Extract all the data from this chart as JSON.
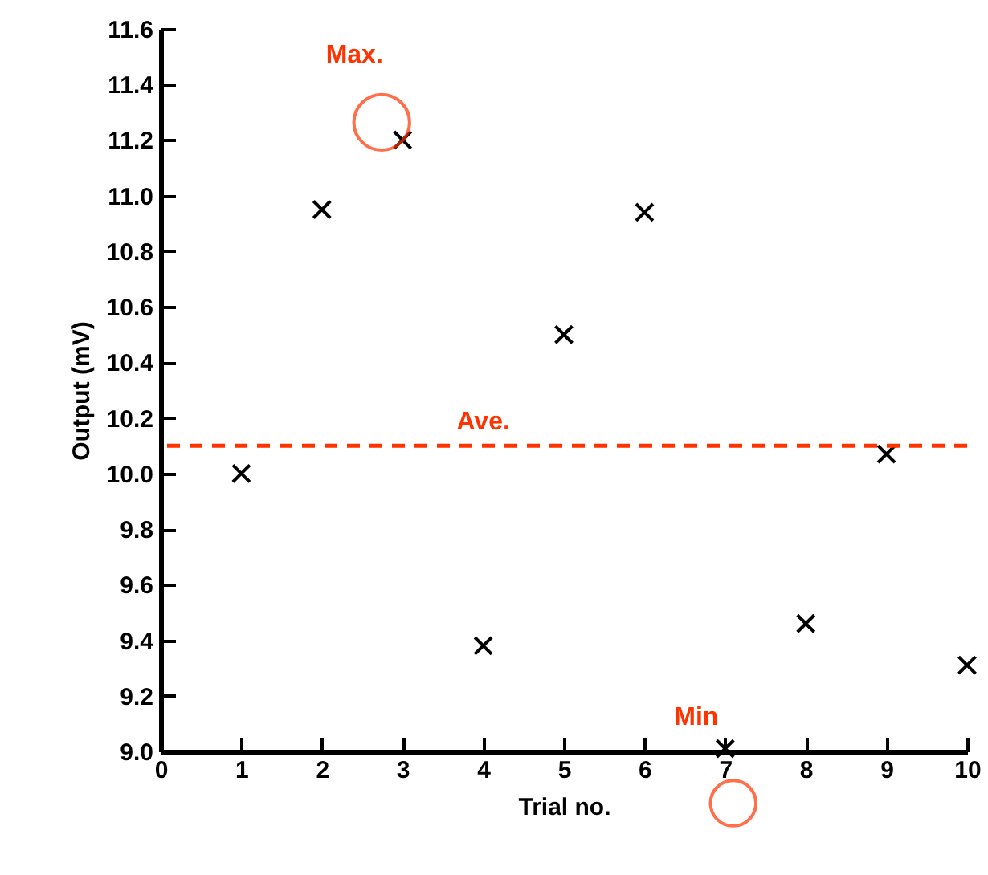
{
  "chart_data": {
    "type": "scatter",
    "xlabel": "Trial no.",
    "ylabel": "Output (mV)",
    "x": [
      1,
      2,
      3,
      4,
      5,
      6,
      7,
      8,
      9,
      10
    ],
    "series": [
      {
        "color": "#000000",
        "values": [
          10.0,
          10.95,
          11.2,
          9.38,
          10.5,
          10.94,
          9.01,
          9.46,
          10.07,
          9.31
        ]
      }
    ],
    "marker": "cross",
    "grid": false,
    "xlim": [
      0,
      10
    ],
    "xticks": [
      0,
      1,
      2,
      3,
      4,
      5,
      6,
      7,
      8,
      9,
      10
    ],
    "ylim": [
      9,
      11.6
    ],
    "yticks": [
      {
        "value": 9,
        "label": "9.0"
      },
      {
        "value": 9.2,
        "label": "9.2"
      },
      {
        "value": 9.4,
        "label": "9.4"
      },
      {
        "value": 9.6,
        "label": "9.6"
      },
      {
        "value": 9.8,
        "label": "9.8"
      },
      {
        "value": 10,
        "label": "10.0"
      },
      {
        "value": 10.2,
        "label": "10.2"
      },
      {
        "value": 10.4,
        "label": "10.4"
      },
      {
        "value": 10.6,
        "label": "10.6"
      },
      {
        "value": 10.8,
        "label": "10.8"
      },
      {
        "value": 11,
        "label": "11.0"
      },
      {
        "value": 11.2,
        "label": "11.2"
      },
      {
        "value": 11.4,
        "label": "11.4"
      },
      {
        "value": 11.6,
        "label": "11.6"
      }
    ],
    "ref_lines": [
      {
        "axis": "y",
        "value": 10.1,
        "label": "Ave.",
        "color": "#ff3300",
        "line_style": "dashed"
      }
    ],
    "annotations": [
      {
        "text": "Max.",
        "x": 3,
        "y": 11.2
      },
      {
        "text": "Min",
        "x": 7,
        "y": 9.01
      }
    ]
  }
}
